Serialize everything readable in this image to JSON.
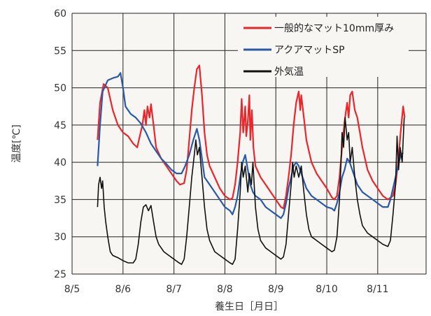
{
  "chart_data": {
    "type": "line",
    "title": "",
    "xlabel": "養生日［月日］",
    "ylabel": "温度[℃]",
    "ylim": [
      25,
      60
    ],
    "yticks": [
      25,
      30,
      35,
      40,
      45,
      50,
      55,
      60
    ],
    "xlim": [
      0,
      6.95
    ],
    "xtick_values": [
      0,
      1,
      2,
      3,
      4,
      5,
      6
    ],
    "xtick_labels": [
      "8/5",
      "8/6",
      "8/7",
      "8/8",
      "8/9",
      "8/10",
      "8/11"
    ],
    "grid": true,
    "legend_position": "top-right",
    "colors": {
      "red": "#e8262b",
      "blue": "#2a59a8",
      "black": "#111111",
      "plot_bg": "#f8f6f3",
      "grid": "#222222"
    },
    "series": [
      {
        "name": "一般的なマット10mm厚み",
        "color": "#e8262b",
        "points": [
          [
            0.5,
            43
          ],
          [
            0.55,
            48
          ],
          [
            0.62,
            50.5
          ],
          [
            0.7,
            50
          ],
          [
            0.8,
            47
          ],
          [
            0.9,
            45
          ],
          [
            1.0,
            44
          ],
          [
            1.1,
            43.5
          ],
          [
            1.2,
            42.5
          ],
          [
            1.28,
            42
          ],
          [
            1.33,
            43.5
          ],
          [
            1.38,
            45
          ],
          [
            1.42,
            47
          ],
          [
            1.45,
            45
          ],
          [
            1.48,
            47.5
          ],
          [
            1.52,
            46
          ],
          [
            1.55,
            47.8
          ],
          [
            1.6,
            45
          ],
          [
            1.65,
            42
          ],
          [
            1.75,
            40.5
          ],
          [
            1.85,
            39.5
          ],
          [
            1.95,
            38.5
          ],
          [
            2.05,
            37.5
          ],
          [
            2.12,
            37
          ],
          [
            2.2,
            37.2
          ],
          [
            2.25,
            39
          ],
          [
            2.3,
            43
          ],
          [
            2.35,
            47
          ],
          [
            2.4,
            50
          ],
          [
            2.45,
            52.5
          ],
          [
            2.5,
            53
          ],
          [
            2.55,
            49
          ],
          [
            2.6,
            44
          ],
          [
            2.65,
            41
          ],
          [
            2.7,
            39.5
          ],
          [
            2.8,
            38
          ],
          [
            2.9,
            36.5
          ],
          [
            3.0,
            35.5
          ],
          [
            3.1,
            35
          ],
          [
            3.15,
            35.2
          ],
          [
            3.2,
            37
          ],
          [
            3.25,
            40
          ],
          [
            3.3,
            44
          ],
          [
            3.33,
            48.5
          ],
          [
            3.36,
            44
          ],
          [
            3.4,
            47.5
          ],
          [
            3.42,
            43.5
          ],
          [
            3.45,
            45.5
          ],
          [
            3.48,
            49
          ],
          [
            3.5,
            43
          ],
          [
            3.53,
            47
          ],
          [
            3.56,
            42
          ],
          [
            3.6,
            39.5
          ],
          [
            3.7,
            38
          ],
          [
            3.8,
            37
          ],
          [
            3.9,
            36
          ],
          [
            4.0,
            35
          ],
          [
            4.1,
            34
          ],
          [
            4.15,
            33.8
          ],
          [
            4.2,
            35.5
          ],
          [
            4.25,
            38
          ],
          [
            4.3,
            41
          ],
          [
            4.35,
            45
          ],
          [
            4.4,
            48
          ],
          [
            4.45,
            49.5
          ],
          [
            4.48,
            47
          ],
          [
            4.5,
            49
          ],
          [
            4.55,
            46
          ],
          [
            4.6,
            43
          ],
          [
            4.7,
            40
          ],
          [
            4.8,
            38.5
          ],
          [
            4.9,
            37.5
          ],
          [
            5.0,
            36.5
          ],
          [
            5.1,
            35.3
          ],
          [
            5.15,
            35
          ],
          [
            5.2,
            35.5
          ],
          [
            5.25,
            38
          ],
          [
            5.3,
            42
          ],
          [
            5.35,
            45.5
          ],
          [
            5.4,
            48
          ],
          [
            5.43,
            46
          ],
          [
            5.46,
            49
          ],
          [
            5.5,
            49.5
          ],
          [
            5.55,
            47
          ],
          [
            5.6,
            46
          ],
          [
            5.65,
            44
          ],
          [
            5.7,
            42
          ],
          [
            5.8,
            39
          ],
          [
            5.9,
            37.5
          ],
          [
            6.0,
            36.5
          ],
          [
            6.1,
            35.5
          ],
          [
            6.2,
            35
          ],
          [
            6.3,
            35.5
          ],
          [
            6.35,
            37
          ],
          [
            6.4,
            40
          ],
          [
            6.45,
            44
          ],
          [
            6.5,
            47.5
          ],
          [
            6.53,
            46
          ]
        ]
      },
      {
        "name": "アクアマットSP",
        "color": "#2a59a8",
        "points": [
          [
            0.5,
            39.5
          ],
          [
            0.55,
            45
          ],
          [
            0.6,
            49.5
          ],
          [
            0.7,
            51
          ],
          [
            0.8,
            51.3
          ],
          [
            0.9,
            51.5
          ],
          [
            0.95,
            52
          ],
          [
            1.0,
            50
          ],
          [
            1.05,
            47.5
          ],
          [
            1.15,
            46.5
          ],
          [
            1.25,
            46
          ],
          [
            1.35,
            45.2
          ],
          [
            1.45,
            44
          ],
          [
            1.55,
            42.5
          ],
          [
            1.65,
            41.5
          ],
          [
            1.75,
            40.5
          ],
          [
            1.85,
            39.8
          ],
          [
            1.95,
            39
          ],
          [
            2.05,
            38.5
          ],
          [
            2.15,
            38.5
          ],
          [
            2.22,
            39.5
          ],
          [
            2.3,
            41
          ],
          [
            2.38,
            43
          ],
          [
            2.45,
            44.5
          ],
          [
            2.5,
            43
          ],
          [
            2.55,
            40.5
          ],
          [
            2.6,
            38
          ],
          [
            2.7,
            37
          ],
          [
            2.8,
            36
          ],
          [
            2.9,
            35
          ],
          [
            3.0,
            34
          ],
          [
            3.1,
            33.5
          ],
          [
            3.15,
            33
          ],
          [
            3.2,
            34
          ],
          [
            3.25,
            35.5
          ],
          [
            3.3,
            38
          ],
          [
            3.35,
            40
          ],
          [
            3.4,
            41
          ],
          [
            3.45,
            39
          ],
          [
            3.5,
            37
          ],
          [
            3.55,
            36
          ],
          [
            3.6,
            35.5
          ],
          [
            3.7,
            35
          ],
          [
            3.8,
            34
          ],
          [
            3.9,
            33.5
          ],
          [
            4.0,
            33
          ],
          [
            4.1,
            32.5
          ],
          [
            4.15,
            33
          ],
          [
            4.2,
            34.5
          ],
          [
            4.25,
            36.5
          ],
          [
            4.3,
            38
          ],
          [
            4.35,
            39.5
          ],
          [
            4.4,
            40
          ],
          [
            4.45,
            39.5
          ],
          [
            4.5,
            38.5
          ],
          [
            4.55,
            37.5
          ],
          [
            4.6,
            36.5
          ],
          [
            4.7,
            35.5
          ],
          [
            4.8,
            35
          ],
          [
            4.9,
            34.5
          ],
          [
            5.0,
            34
          ],
          [
            5.1,
            33.8
          ],
          [
            5.15,
            33.5
          ],
          [
            5.2,
            34.5
          ],
          [
            5.25,
            36
          ],
          [
            5.3,
            38
          ],
          [
            5.35,
            39
          ],
          [
            5.4,
            40.5
          ],
          [
            5.45,
            40
          ],
          [
            5.5,
            39
          ],
          [
            5.55,
            38
          ],
          [
            5.6,
            37
          ],
          [
            5.7,
            36
          ],
          [
            5.8,
            35.5
          ],
          [
            5.9,
            35
          ],
          [
            6.0,
            34.5
          ],
          [
            6.1,
            34
          ],
          [
            6.2,
            34
          ],
          [
            6.25,
            35
          ],
          [
            6.3,
            36.5
          ],
          [
            6.35,
            38
          ],
          [
            6.4,
            39.5
          ],
          [
            6.45,
            41
          ],
          [
            6.5,
            41.3
          ]
        ]
      },
      {
        "name": "外気温",
        "color": "#111111",
        "points": [
          [
            0.5,
            34
          ],
          [
            0.52,
            37
          ],
          [
            0.55,
            38
          ],
          [
            0.58,
            36.5
          ],
          [
            0.6,
            37.5
          ],
          [
            0.63,
            34
          ],
          [
            0.66,
            32
          ],
          [
            0.7,
            30
          ],
          [
            0.75,
            28
          ],
          [
            0.8,
            27.5
          ],
          [
            0.9,
            27.2
          ],
          [
            1.0,
            26.8
          ],
          [
            1.1,
            26.5
          ],
          [
            1.2,
            26.5
          ],
          [
            1.25,
            27
          ],
          [
            1.3,
            29
          ],
          [
            1.35,
            32
          ],
          [
            1.4,
            34
          ],
          [
            1.45,
            34.3
          ],
          [
            1.5,
            33.5
          ],
          [
            1.55,
            34.2
          ],
          [
            1.6,
            32
          ],
          [
            1.65,
            30
          ],
          [
            1.7,
            29
          ],
          [
            1.8,
            28
          ],
          [
            1.9,
            27.5
          ],
          [
            2.0,
            27
          ],
          [
            2.1,
            26.5
          ],
          [
            2.15,
            26.3
          ],
          [
            2.2,
            27
          ],
          [
            2.25,
            30
          ],
          [
            2.3,
            34
          ],
          [
            2.35,
            38
          ],
          [
            2.4,
            41
          ],
          [
            2.43,
            43
          ],
          [
            2.46,
            41
          ],
          [
            2.5,
            42
          ],
          [
            2.55,
            38
          ],
          [
            2.6,
            34
          ],
          [
            2.65,
            31
          ],
          [
            2.7,
            29.5
          ],
          [
            2.8,
            28
          ],
          [
            2.9,
            27.5
          ],
          [
            3.0,
            27
          ],
          [
            3.1,
            26.5
          ],
          [
            3.15,
            26.3
          ],
          [
            3.2,
            27
          ],
          [
            3.25,
            31
          ],
          [
            3.3,
            36
          ],
          [
            3.33,
            40
          ],
          [
            3.36,
            38
          ],
          [
            3.4,
            39.5
          ],
          [
            3.45,
            36
          ],
          [
            3.48,
            38.5
          ],
          [
            3.52,
            37
          ],
          [
            3.55,
            40
          ],
          [
            3.6,
            34
          ],
          [
            3.65,
            31
          ],
          [
            3.7,
            29.5
          ],
          [
            3.8,
            28.5
          ],
          [
            3.9,
            28
          ],
          [
            4.0,
            27.5
          ],
          [
            4.1,
            27
          ],
          [
            4.15,
            27.3
          ],
          [
            4.2,
            29
          ],
          [
            4.25,
            33
          ],
          [
            4.3,
            37
          ],
          [
            4.33,
            40
          ],
          [
            4.36,
            38
          ],
          [
            4.4,
            39.5
          ],
          [
            4.45,
            38
          ],
          [
            4.5,
            39.5
          ],
          [
            4.55,
            36
          ],
          [
            4.6,
            33
          ],
          [
            4.65,
            31
          ],
          [
            4.7,
            30
          ],
          [
            4.8,
            29.5
          ],
          [
            4.9,
            29
          ],
          [
            5.0,
            28.5
          ],
          [
            5.1,
            28
          ],
          [
            5.15,
            28.2
          ],
          [
            5.2,
            30
          ],
          [
            5.25,
            35
          ],
          [
            5.28,
            40
          ],
          [
            5.3,
            44
          ],
          [
            5.33,
            42
          ],
          [
            5.36,
            46
          ],
          [
            5.4,
            43
          ],
          [
            5.43,
            44
          ],
          [
            5.46,
            40
          ],
          [
            5.5,
            42
          ],
          [
            5.55,
            38
          ],
          [
            5.6,
            35
          ],
          [
            5.65,
            33
          ],
          [
            5.7,
            31.5
          ],
          [
            5.8,
            30.5
          ],
          [
            5.9,
            30
          ],
          [
            6.0,
            29.5
          ],
          [
            6.1,
            29
          ],
          [
            6.2,
            28.7
          ],
          [
            6.25,
            29.5
          ],
          [
            6.3,
            33
          ],
          [
            6.35,
            37
          ],
          [
            6.38,
            43.5
          ],
          [
            6.41,
            39
          ],
          [
            6.44,
            42
          ],
          [
            6.48,
            40
          ],
          [
            6.52,
            46
          ]
        ]
      }
    ]
  }
}
